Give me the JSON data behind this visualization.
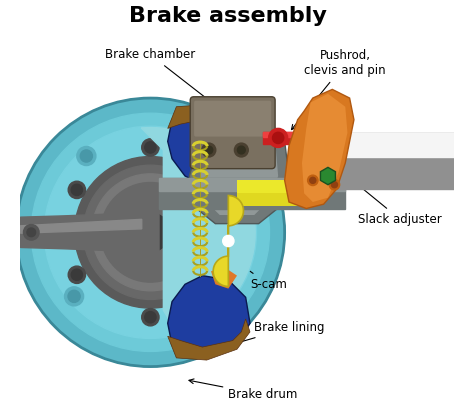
{
  "title": "Brake assembly",
  "title_fontsize": 16,
  "title_fontweight": "bold",
  "background_color": "#ffffff",
  "labels": {
    "brake_chamber": "Brake chamber",
    "pushrod": "Pushrod,\nclevis and pin",
    "slack_adjuster": "Slack adjuster",
    "s_cam": "S-cam",
    "brake_lining": "Brake lining",
    "brake_drum": "Brake drum"
  },
  "colors": {
    "drum_outer": "#5cb8c8",
    "drum_rim": "#4aa8b8",
    "drum_face": "#6dcad8",
    "drum_inner_face": "#78d2e0",
    "hub_outer": "#707070",
    "hub_mid": "#808080",
    "hub_inner": "#909090",
    "axle": "#666666",
    "axle_light": "#888888",
    "brake_shoe_blue": "#1e3da0",
    "brake_shoe_dark": "#182e80",
    "brake_lining_brown": "#8b6020",
    "brake_lining_dark": "#6b4810",
    "spring_yellow": "#d8d030",
    "spring_shadow": "#a8a020",
    "s_cam_yellow": "#e8d828",
    "s_cam_dark": "#b8a818",
    "s_cam_orange": "#e07828",
    "slack_orange": "#d87820",
    "slack_light": "#f09840",
    "slack_dark": "#b05810",
    "chamber_gray": "#7a7060",
    "chamber_light": "#8a8070",
    "pushrod_red": "#cc2020",
    "pushrod_light": "#ee4040",
    "camshaft_gray": "#909090",
    "camshaft_light": "#b0b0b0",
    "worm_gray": "#707878",
    "worm_light": "#909898",
    "cylinder_white": "#e8eae8",
    "cylinder_light": "#f5f5f5",
    "cylinder_yellow": "#e0d820",
    "green_hex": "#2a8830",
    "teal_cutaway": "#90d8e0",
    "dark_outline": "#222222"
  },
  "figsize": [
    4.74,
    4.17
  ],
  "dpi": 100
}
